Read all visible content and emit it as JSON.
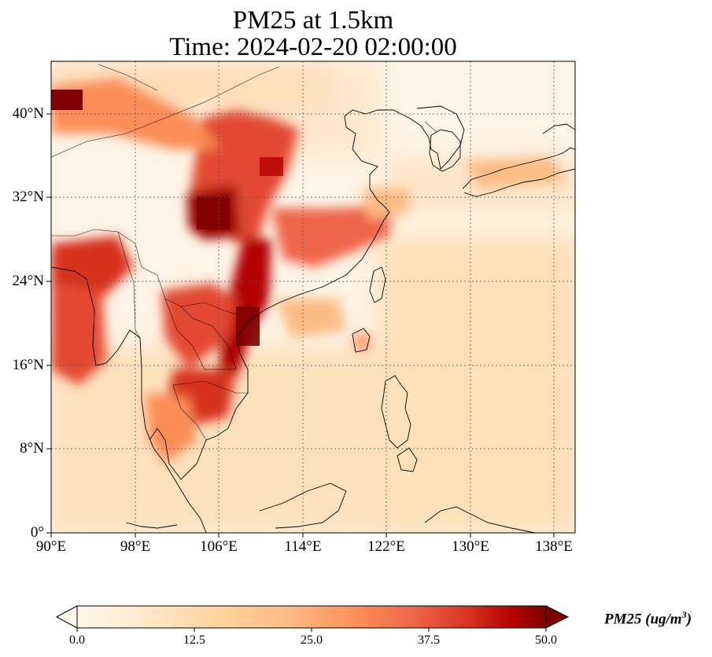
{
  "title": {
    "line1": "PM25 at 1.5km",
    "line2": "Time: 2024-02-20 02:00:00"
  },
  "axes": {
    "lon_ticks": [
      "90°E",
      "98°E",
      "106°E",
      "114°E",
      "122°E",
      "130°E",
      "138°E"
    ],
    "lat_ticks": [
      "0°",
      "8°N",
      "16°N",
      "24°N",
      "32°N",
      "40°N"
    ],
    "lon_range": [
      90,
      140
    ],
    "lat_range": [
      0,
      45
    ],
    "gridlines": true
  },
  "colorbar": {
    "colormap": "OrRd",
    "range": [
      0,
      50
    ],
    "ticks": [
      "0.0",
      "12.5",
      "25.0",
      "37.5",
      "50.0"
    ],
    "label_prefix": "PM25 (ug/m",
    "label_exp": "3",
    "label_suffix": ")",
    "extend": "both"
  },
  "colors": {
    "low": "#fff7ec",
    "mid": "#fc8d59",
    "high": "#7f0000"
  }
}
